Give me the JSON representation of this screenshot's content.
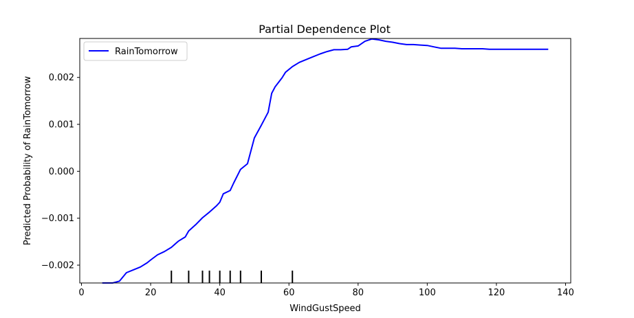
{
  "chart_data": {
    "type": "line",
    "title": "Partial Dependence Plot",
    "xlabel": "WindGustSpeed",
    "ylabel": "Predicted Probability of RainTomorrow",
    "xlim": [
      -0.5,
      141.5
    ],
    "ylim": [
      -0.00238,
      0.00283
    ],
    "x_ticks": [
      0,
      20,
      40,
      60,
      80,
      100,
      120,
      140
    ],
    "x_tick_labels": [
      "0",
      "20",
      "40",
      "60",
      "80",
      "100",
      "120",
      "140"
    ],
    "y_ticks": [
      -0.002,
      -0.001,
      0.0,
      0.001,
      0.002
    ],
    "y_tick_labels": [
      "−0.002",
      "−0.001",
      "0.000",
      "0.001",
      "0.002"
    ],
    "grid": false,
    "legend": {
      "position": "top-left",
      "entries": [
        "RainTomorrow"
      ]
    },
    "series": [
      {
        "name": "RainTomorrow",
        "color": "#0000ff",
        "x": [
          6,
          9,
          11,
          13,
          15,
          17,
          19,
          20,
          22,
          24,
          26,
          28,
          30,
          31,
          33,
          35,
          37,
          39,
          40,
          41,
          43,
          44,
          46,
          48,
          50,
          52,
          54,
          55,
          56,
          58,
          59,
          61,
          63,
          65,
          67,
          69,
          71,
          73,
          75,
          77,
          78,
          80,
          82,
          84,
          86,
          88,
          90,
          92,
          94,
          96,
          98,
          100,
          102,
          104,
          106,
          108,
          110,
          112,
          114,
          116,
          118,
          120,
          122,
          124,
          126,
          128,
          130,
          132,
          135
        ],
        "y": [
          -0.00238,
          -0.00238,
          -0.00234,
          -0.00216,
          -0.0021,
          -0.00204,
          -0.00195,
          -0.00189,
          -0.00178,
          -0.00171,
          -0.00162,
          -0.00149,
          -0.0014,
          -0.00127,
          -0.00114,
          -0.00099,
          -0.00087,
          -0.00074,
          -0.00066,
          -0.00048,
          -0.00041,
          -0.00025,
          4e-05,
          0.00016,
          0.00071,
          0.00098,
          0.00126,
          0.00166,
          0.0018,
          0.00199,
          0.00211,
          0.00223,
          0.00232,
          0.00238,
          0.00244,
          0.0025,
          0.00255,
          0.00259,
          0.00259,
          0.0026,
          0.00265,
          0.00267,
          0.00277,
          0.00282,
          0.0028,
          0.00277,
          0.00275,
          0.00272,
          0.0027,
          0.0027,
          0.00269,
          0.00268,
          0.00265,
          0.00262,
          0.00262,
          0.00262,
          0.00261,
          0.00261,
          0.00261,
          0.00261,
          0.0026,
          0.0026,
          0.0026,
          0.0026,
          0.0026,
          0.0026,
          0.0026,
          0.0026,
          0.0026
        ]
      }
    ],
    "rug": [
      26,
      31,
      35,
      37,
      40,
      43,
      46,
      52,
      61
    ]
  }
}
